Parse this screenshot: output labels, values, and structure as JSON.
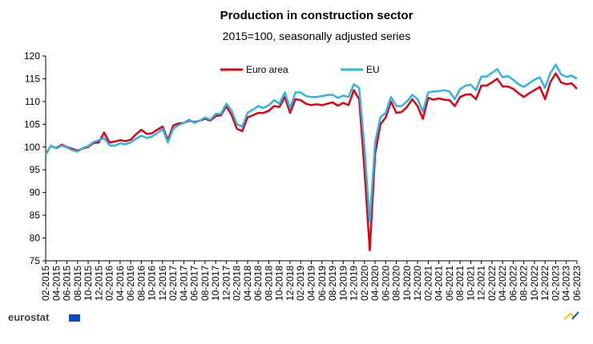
{
  "chart_data": {
    "type": "line",
    "title": "Production in construction sector",
    "subtitle": "2015=100, seasonally adjusted series",
    "categories": [
      "02-2015",
      null,
      "04-2015",
      null,
      "06-2015",
      null,
      "08-2015",
      null,
      "10-2015",
      null,
      "12-2015",
      null,
      "02-2016",
      null,
      "04-2016",
      null,
      "06-2016",
      null,
      "08-2016",
      null,
      "10-2016",
      null,
      "12-2016",
      null,
      "02-2017",
      null,
      "04-2017",
      null,
      "06-2017",
      null,
      "08-2017",
      null,
      "10-2017",
      null,
      "12-2017",
      null,
      "02-2018",
      null,
      "04-2018",
      null,
      "06-2018",
      null,
      "08-2018",
      null,
      "10-2018",
      null,
      "12-2018",
      null,
      "02-2019",
      null,
      "04-2019",
      null,
      "06-2019",
      null,
      "08-2019",
      null,
      "10-2019",
      null,
      "12-2019",
      null,
      "02-2020",
      null,
      "04-2020",
      null,
      "06-2020",
      null,
      "08-2020",
      null,
      "10-2020",
      null,
      "12-2020",
      null,
      "02-2021",
      null,
      "04-2021",
      null,
      "06-2021",
      null,
      "08-2021",
      null,
      "10-2021",
      null,
      "12-2021",
      null,
      "02-2022",
      null,
      "04-2022",
      null,
      "06-2022",
      null,
      "08-2022",
      null,
      "10-2022",
      null,
      "12-2022",
      null,
      "02-2023",
      null,
      "04-2023",
      null,
      "06-2023"
    ],
    "series": [
      {
        "name": "Euro area",
        "color": "#e3000f",
        "values": [
          98.5,
          100.2,
          99.8,
          100.5,
          100.0,
          99.6,
          99.2,
          99.7,
          100.0,
          100.9,
          101.0,
          103.2,
          101.0,
          101.2,
          101.5,
          101.3,
          101.6,
          102.8,
          103.8,
          102.9,
          103.0,
          103.8,
          104.5,
          101.5,
          104.7,
          105.2,
          105.3,
          105.8,
          105.5,
          105.8,
          106.2,
          105.8,
          106.8,
          107.0,
          109.0,
          107.0,
          104.0,
          103.5,
          106.5,
          107.0,
          107.5,
          107.5,
          108.0,
          109.0,
          108.8,
          111.0,
          107.5,
          110.5,
          110.3,
          109.5,
          109.2,
          109.4,
          109.2,
          109.5,
          109.8,
          109.1,
          109.7,
          109.2,
          112.5,
          110.5,
          95.0,
          77.3,
          98.5,
          105.0,
          106.5,
          110.0,
          107.5,
          107.7,
          108.8,
          110.5,
          109.0,
          106.2,
          110.8,
          110.4,
          110.7,
          110.4,
          110.3,
          109.0,
          111.0,
          111.5,
          111.6,
          110.5,
          113.5,
          113.5,
          114.2,
          115.0,
          113.3,
          113.3,
          112.8,
          111.8,
          111.0,
          111.8,
          112.5,
          113.2,
          110.5,
          114.3,
          116.2,
          114.2,
          113.8,
          114.0,
          112.8
        ]
      },
      {
        "name": "EU",
        "color": "#2eb5e8",
        "values": [
          98.3,
          100.3,
          99.7,
          100.3,
          99.9,
          99.3,
          99.0,
          99.8,
          100.2,
          101.1,
          101.5,
          102.0,
          100.4,
          100.3,
          100.8,
          100.6,
          101.0,
          101.8,
          102.5,
          102.0,
          102.3,
          103.0,
          104.0,
          101.0,
          104.0,
          104.8,
          105.3,
          106.0,
          105.3,
          105.8,
          106.5,
          106.0,
          107.3,
          107.3,
          109.5,
          108.0,
          105.0,
          104.5,
          107.5,
          108.2,
          109.0,
          108.6,
          109.2,
          110.3,
          109.5,
          112.0,
          108.5,
          112.0,
          112.0,
          111.2,
          111.0,
          111.0,
          111.2,
          111.4,
          111.5,
          110.8,
          111.3,
          111.0,
          113.8,
          113.0,
          100.0,
          83.5,
          101.0,
          106.5,
          107.5,
          111.0,
          109.0,
          109.0,
          110.0,
          111.5,
          110.5,
          107.8,
          112.0,
          112.2,
          112.3,
          112.5,
          112.2,
          110.5,
          112.7,
          113.5,
          113.7,
          112.5,
          115.5,
          115.5,
          116.3,
          117.1,
          115.3,
          115.6,
          114.8,
          113.8,
          113.2,
          114.0,
          114.8,
          115.3,
          113.0,
          116.3,
          118.1,
          116.0,
          115.4,
          115.7,
          115.0
        ]
      }
    ],
    "ylim": [
      75,
      120
    ],
    "yticks": [
      75,
      80,
      85,
      90,
      95,
      100,
      105,
      110,
      115,
      120
    ],
    "legend": "top",
    "grid": false,
    "source": "eurostat"
  }
}
